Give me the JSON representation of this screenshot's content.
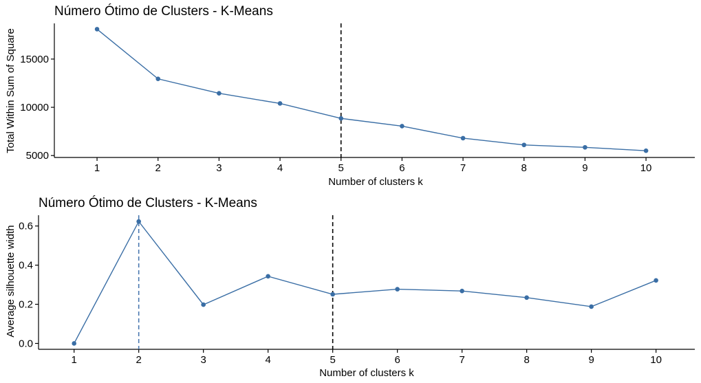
{
  "colors": {
    "series": "#3a6ea5",
    "ref_line": "#000000",
    "opt_line": "#4a78b0"
  },
  "chart_data": [
    {
      "type": "line",
      "title": "Número Ótimo de Clusters - K-Means",
      "xlabel": "Number of clusters k",
      "ylabel": "Total Within Sum of Square",
      "x": [
        1,
        2,
        3,
        4,
        5,
        6,
        7,
        8,
        9,
        10
      ],
      "series": [
        {
          "values": [
            18100,
            12950,
            11450,
            10400,
            8850,
            8050,
            6800,
            6100,
            5850,
            5500
          ]
        }
      ],
      "yticks": [
        5000,
        10000,
        15000
      ],
      "ytick_labels": [
        "5000",
        "10000",
        "15000"
      ],
      "ylim": [
        4800,
        18700
      ],
      "xlim": [
        0.3,
        10.8
      ],
      "vlines": [
        {
          "x": 5,
          "style": "dashed",
          "color": "black"
        }
      ],
      "grid": false,
      "legend": "none"
    },
    {
      "type": "line",
      "title": "Número Ótimo de Clusters - K-Means",
      "xlabel": "Number of clusters k",
      "ylabel": "Average silhouette width",
      "x": [
        1,
        2,
        3,
        4,
        5,
        6,
        7,
        8,
        9,
        10
      ],
      "series": [
        {
          "values": [
            0.0,
            0.623,
            0.198,
            0.343,
            0.251,
            0.277,
            0.268,
            0.234,
            0.188,
            0.322
          ]
        }
      ],
      "yticks": [
        0.0,
        0.2,
        0.4,
        0.6
      ],
      "ytick_labels": [
        "0.0",
        "0.2",
        "0.4",
        "0.6"
      ],
      "ylim": [
        -0.03,
        0.655
      ],
      "xlim": [
        0.45,
        10.6
      ],
      "vlines": [
        {
          "x": 2,
          "style": "dashed",
          "color": "blue"
        },
        {
          "x": 5,
          "style": "dashed",
          "color": "black"
        }
      ],
      "grid": false,
      "legend": "none"
    }
  ]
}
